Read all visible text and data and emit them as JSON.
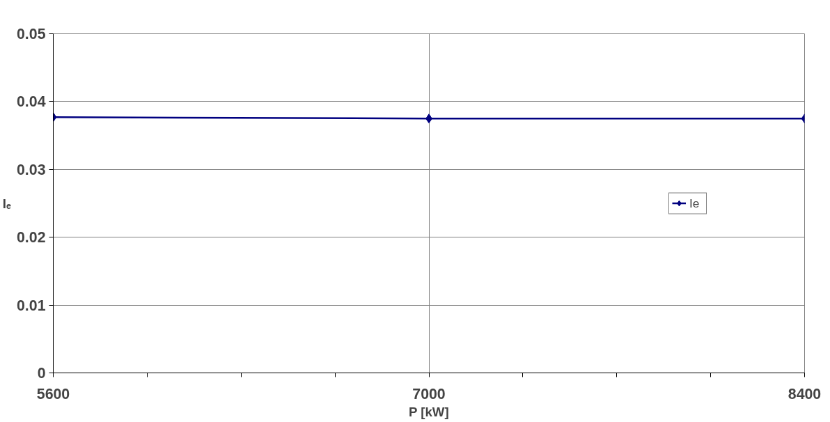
{
  "chart_data": {
    "type": "line",
    "xlabel": "P [kW]",
    "ylabel": "Iₑ",
    "x": [
      5600,
      7000,
      8400
    ],
    "series": [
      {
        "name": "Ie",
        "color": "#000080",
        "values": [
          0.0377,
          0.0375,
          0.0375
        ]
      }
    ],
    "xlim": [
      5600,
      8400
    ],
    "xticks": [
      5600,
      {
        "value": 5950,
        "label": null
      },
      {
        "value": 6300,
        "label": null
      },
      {
        "value": 6650,
        "label": null
      },
      7000,
      {
        "value": 7350,
        "label": null
      },
      {
        "value": 7700,
        "label": null
      },
      {
        "value": 8050,
        "label": null
      },
      8400
    ],
    "ylim": [
      0,
      0.05
    ],
    "yticks": [
      0,
      0.01,
      0.02,
      0.03,
      0.04,
      0.05
    ],
    "grid": true,
    "legend": "right",
    "marker": "diamond",
    "line_style": "solid"
  }
}
